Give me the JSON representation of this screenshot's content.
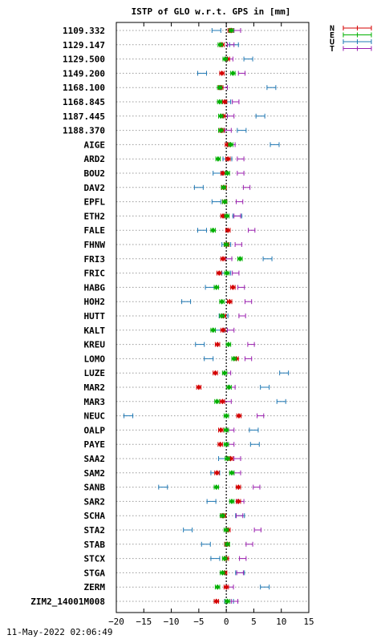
{
  "chart_data": {
    "type": "scatter",
    "title": "ISTP of GLO w.r.t. GPS in [mm]",
    "xlim": [
      -20,
      15
    ],
    "x_ticks": [
      -20,
      -15,
      -10,
      -5,
      0,
      5,
      10,
      15
    ],
    "x_tick_labels": [
      "−20",
      "−15",
      "−10",
      "−5",
      "0",
      "5",
      "10",
      "15"
    ],
    "grid": "horizontal dotted",
    "zero_line": true,
    "legend_placement": "top-right",
    "categories": [
      "1109.332",
      "1129.147",
      "1129.500",
      "1149.200",
      "1168.100",
      "1168.845",
      "1187.445",
      "1188.370",
      "AIGE",
      "ARD2",
      "BOU2",
      "DAV2",
      "EPFL",
      "ETH2",
      "FALE",
      "FHNW",
      "FRI3",
      "FRIC",
      "HABG",
      "HOH2",
      "HUTT",
      "KALT",
      "KREU",
      "LOMO",
      "LUZE",
      "MAR2",
      "MAR3",
      "NEUC",
      "OALP",
      "PAYE",
      "SAA2",
      "SAM2",
      "SANB",
      "SAR2",
      "SCHA",
      "STA2",
      "STAB",
      "STCX",
      "STGA",
      "ZERM",
      "ZIM2_14001M008"
    ],
    "series": [
      {
        "name": "N",
        "color": "#d40000",
        "values": [
          0.7,
          -0.8,
          0.2,
          -0.8,
          -1.0,
          -0.3,
          -0.6,
          -0.8,
          0.2,
          0.3,
          -0.6,
          -0.4,
          -0.3,
          -0.6,
          0.3,
          0.1,
          -0.6,
          -1.3,
          1.2,
          0.6,
          -0.5,
          -0.6,
          -1.6,
          1.8,
          -2.0,
          -5.0,
          -0.7,
          2.3,
          -1.0,
          -1.1,
          0.8,
          -1.7,
          2.2,
          2.2,
          -0.5,
          0.3,
          0.1,
          0.0,
          -0.3,
          0.0,
          -1.8
        ],
        "err": [
          0.4,
          0.4,
          0.4,
          0.4,
          0.4,
          0.4,
          0.4,
          0.4,
          0.4,
          0.4,
          0.4,
          0.4,
          0.4,
          0.4,
          0.4,
          0.4,
          0.4,
          0.4,
          0.4,
          0.4,
          0.4,
          0.4,
          0.4,
          0.4,
          0.4,
          0.4,
          0.4,
          0.4,
          0.4,
          0.4,
          0.4,
          0.4,
          0.4,
          0.4,
          0.4,
          0.4,
          0.4,
          0.4,
          0.4,
          0.4,
          0.4
        ]
      },
      {
        "name": "E",
        "color": "#00b000",
        "values": [
          0.9,
          -1.1,
          -0.2,
          1.2,
          -1.2,
          -1.2,
          -1.0,
          -1.0,
          0.8,
          -1.5,
          0.2,
          -0.5,
          -0.3,
          0.1,
          -2.4,
          0.0,
          2.5,
          0.1,
          -1.8,
          -0.8,
          -0.8,
          -2.4,
          0.4,
          1.4,
          -0.3,
          0.5,
          -1.7,
          0.0,
          0.0,
          0.0,
          0.2,
          1.0,
          -1.8,
          1.0,
          -0.7,
          0.0,
          0.2,
          -0.3,
          -0.7,
          -1.6,
          0.2
        ],
        "err": [
          0.4,
          0.4,
          0.4,
          0.4,
          0.4,
          0.4,
          0.4,
          0.4,
          0.4,
          0.4,
          0.4,
          0.4,
          0.4,
          0.4,
          0.4,
          0.4,
          0.4,
          0.4,
          0.4,
          0.4,
          0.4,
          0.4,
          0.4,
          0.4,
          0.4,
          0.4,
          0.4,
          0.4,
          0.4,
          0.4,
          0.4,
          0.4,
          0.4,
          0.4,
          0.4,
          0.4,
          0.4,
          0.4,
          0.4,
          0.4,
          0.4
        ]
      },
      {
        "name": "U",
        "color": "#1f78b4",
        "values": [
          -1.8,
          1.4,
          4.0,
          -4.4,
          8.2,
          0.0,
          6.2,
          2.8,
          8.8,
          0.2,
          -1.6,
          -5.0,
          -1.8,
          2.0,
          -4.4,
          0.0,
          7.5,
          0.0,
          -3.0,
          -7.3,
          -0.5,
          -1.2,
          -4.8,
          -3.2,
          10.5,
          7.0,
          10.0,
          -17.8,
          5.0,
          5.2,
          -0.6,
          -2.0,
          -11.5,
          -2.7,
          2.5,
          -7.0,
          -3.7,
          -2.0,
          2.5,
          7.0,
          0.5
        ],
        "err": [
          0.8,
          0.8,
          0.8,
          0.8,
          0.8,
          0.8,
          0.8,
          0.8,
          0.8,
          0.8,
          0.8,
          0.8,
          0.8,
          0.8,
          0.8,
          0.8,
          0.8,
          0.8,
          0.8,
          0.8,
          0.8,
          0.8,
          0.8,
          0.8,
          0.8,
          0.8,
          0.8,
          0.8,
          0.8,
          0.8,
          0.8,
          0.8,
          0.8,
          0.8,
          0.8,
          0.8,
          0.8,
          0.8,
          0.8,
          0.8,
          0.8
        ]
      },
      {
        "name": "T",
        "color": "#9b1fb0",
        "values": [
          2.0,
          0.8,
          0.6,
          2.8,
          -0.4,
          1.7,
          0.8,
          0.3,
          1.0,
          2.6,
          2.6,
          3.7,
          2.4,
          2.0,
          4.6,
          2.2,
          0.4,
          1.7,
          2.7,
          4.0,
          2.9,
          0.8,
          4.5,
          4.0,
          0.2,
          1.0,
          0.3,
          6.2,
          0.8,
          0.8,
          2.0,
          2.0,
          5.5,
          2.6,
          2.4,
          5.7,
          4.2,
          3.0,
          2.5,
          0.7,
          1.5
        ],
        "err": [
          0.6,
          0.6,
          0.6,
          0.6,
          0.6,
          0.6,
          0.6,
          0.6,
          0.6,
          0.6,
          0.6,
          0.6,
          0.6,
          0.6,
          0.6,
          0.6,
          0.6,
          0.6,
          0.6,
          0.6,
          0.6,
          0.6,
          0.6,
          0.6,
          0.6,
          0.6,
          0.6,
          0.6,
          0.6,
          0.6,
          0.6,
          0.6,
          0.6,
          0.6,
          0.6,
          0.6,
          0.6,
          0.6,
          0.6,
          0.6,
          0.6
        ]
      }
    ]
  },
  "timestamp": "11-May-2022 02:06:49"
}
